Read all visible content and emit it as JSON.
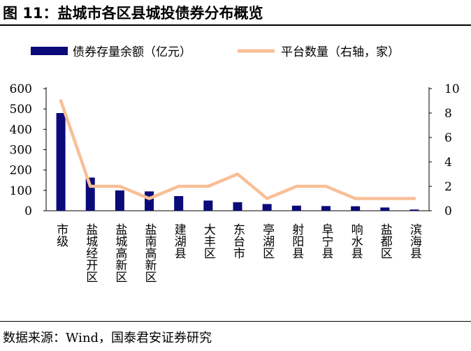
{
  "figure": {
    "title": "图 11：盐城市各区县城投债券分布概览",
    "source": "数据来源：Wind，国泰君安证券研究"
  },
  "colors": {
    "bar": "#0a0a78",
    "line": "#f8bf98",
    "axis": "#000000"
  },
  "chart_data": {
    "type": "bar+line",
    "categories": [
      "市级",
      "盐城经开区",
      "盐城高新区",
      "盐南高新区",
      "建湖县",
      "大丰区",
      "东台市",
      "亭湖区",
      "射阳县",
      "阜宁县",
      "响水县",
      "盐都区",
      "滨海县"
    ],
    "series": [
      {
        "name": "债券存量余额（亿元）",
        "type": "bar",
        "axis": "left",
        "values": [
          480,
          163,
          100,
          95,
          72,
          50,
          42,
          33,
          25,
          23,
          22,
          16,
          6
        ]
      },
      {
        "name": "平台数量（右轴，家）",
        "type": "line",
        "axis": "right",
        "values": [
          9,
          2,
          2,
          1,
          2,
          2,
          3,
          1,
          2,
          2,
          1,
          1,
          1
        ]
      }
    ],
    "y_left": {
      "min": 0,
      "max": 600,
      "ticks": [
        0,
        100,
        200,
        300,
        400,
        500,
        600
      ]
    },
    "y_right": {
      "min": 0,
      "max": 10,
      "ticks": [
        0,
        2,
        4,
        6,
        8,
        10
      ]
    },
    "legend_position": "top",
    "grid": false
  }
}
